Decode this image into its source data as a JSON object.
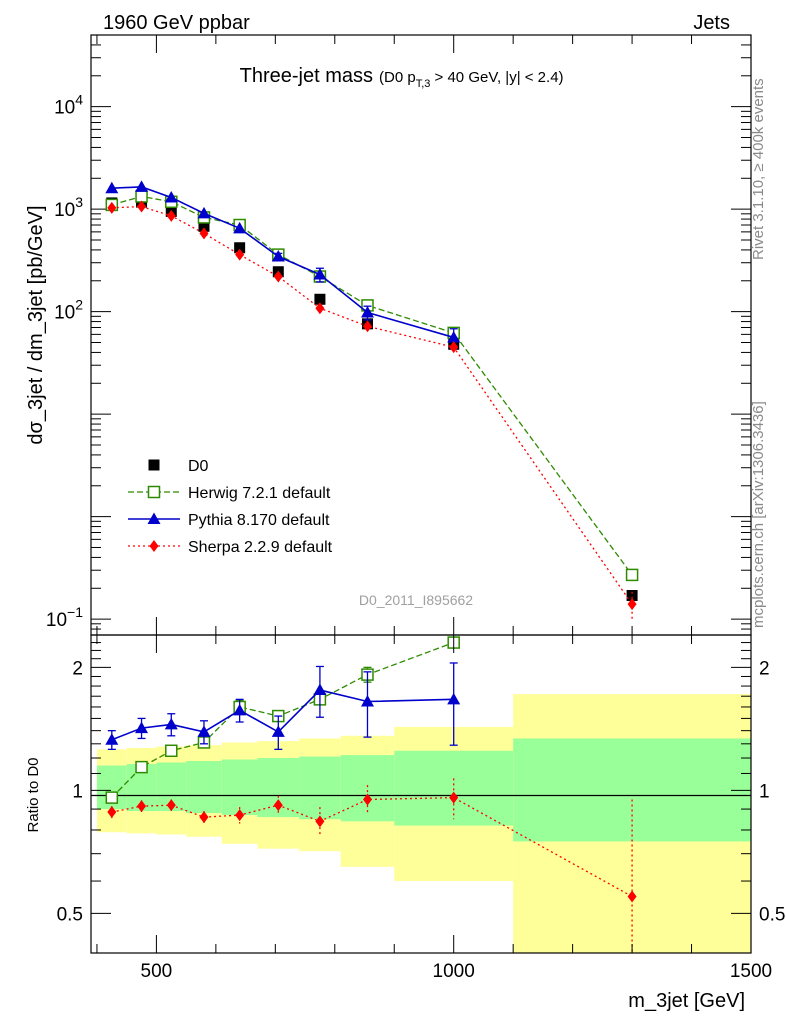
{
  "header": {
    "left": "1960 GeV ppbar",
    "right": "Jets"
  },
  "side_labels": {
    "rivet": "Rivet 3.1.10, ≥ 400k events",
    "mcplots": "mcplots.cern.ch [arXiv:1306.3436]"
  },
  "chart_data": [
    {
      "type": "scatter",
      "panel": "main",
      "title_main": "Three-jet mass",
      "title_sub": "(D0 p",
      "title_sub_index": "T,3",
      "title_sub_rest": " > 40 GeV, |y| < 2.4)",
      "ylabel": "dσ_3jet / dm_3jet [pb/GeV]",
      "watermark": "D0_2011_I895662",
      "yscale": "log",
      "xlim": [
        390,
        1500
      ],
      "ylim": [
        0.07,
        50000
      ],
      "x": [
        425,
        475,
        525,
        580,
        640,
        705,
        775,
        855,
        1000,
        1300
      ],
      "series": [
        {
          "name": "D0",
          "style": "data",
          "color": "#000000",
          "values": [
            1150,
            1170,
            950,
            680,
            420,
            245,
            132,
            76,
            48,
            0.17
          ],
          "errors": [
            0,
            0,
            0,
            0,
            0,
            0,
            0,
            0,
            0,
            0
          ]
        },
        {
          "name": "Herwig 7.2.1 default",
          "style": "open-square-dashed",
          "color": "#2e8b00",
          "values": [
            1100,
            1330,
            1180,
            830,
            700,
            360,
            220,
            115,
            62,
            0.27
          ],
          "errors": [
            0,
            0,
            0,
            0,
            0,
            0,
            0,
            0,
            0,
            0.03
          ]
        },
        {
          "name": "Pythia 8.170 default",
          "style": "triangle-solid",
          "color": "#0000cc",
          "values": [
            1600,
            1650,
            1300,
            910,
            650,
            345,
            230,
            98,
            56,
            null
          ],
          "errors": [
            0,
            0,
            0,
            0,
            0,
            25,
            35,
            15,
            12,
            0
          ]
        },
        {
          "name": "Sherpa 2.2.9 default",
          "style": "diamond-dotted",
          "color": "#ff0000",
          "values": [
            1030,
            1060,
            860,
            580,
            360,
            220,
            108,
            72,
            45,
            0.14
          ],
          "errors": [
            0,
            0,
            0,
            0,
            0,
            0,
            0,
            0,
            0,
            0.045
          ]
        }
      ],
      "legend": {
        "placement": "lower-left"
      },
      "ytick_labels": [
        {
          "v": 10000,
          "base": "10",
          "exp": "4"
        },
        {
          "v": 1000,
          "base": "10",
          "exp": "3"
        },
        {
          "v": 100,
          "base": "10",
          "exp": "2"
        },
        {
          "v": 0.1,
          "base": "10",
          "exp": "−1"
        }
      ]
    },
    {
      "type": "scatter",
      "panel": "ratio",
      "ylabel": "Ratio to D0",
      "xlabel": "m_3jet [GeV]",
      "yscale": "log",
      "xlim": [
        390,
        1500
      ],
      "ylim": [
        0.4,
        2.4
      ],
      "reference_line": 1,
      "xticks": [
        500,
        1000,
        1500
      ],
      "yticks": [
        0.5,
        1,
        2
      ],
      "bins": [
        [
          400,
          450
        ],
        [
          450,
          500
        ],
        [
          500,
          550
        ],
        [
          550,
          610
        ],
        [
          610,
          670
        ],
        [
          670,
          740
        ],
        [
          740,
          810
        ],
        [
          810,
          900
        ],
        [
          900,
          1100
        ],
        [
          1100,
          1500
        ]
      ],
      "band_stat_lo": [
        0.9,
        0.89,
        0.89,
        0.88,
        0.87,
        0.86,
        0.85,
        0.84,
        0.82,
        0.75
      ],
      "band_stat_hi": [
        1.15,
        1.16,
        1.17,
        1.18,
        1.19,
        1.2,
        1.21,
        1.22,
        1.25,
        1.34
      ],
      "band_tot_lo": [
        0.79,
        0.785,
        0.78,
        0.77,
        0.74,
        0.72,
        0.71,
        0.65,
        0.6,
        0.37
      ],
      "band_tot_hi": [
        1.26,
        1.27,
        1.28,
        1.29,
        1.31,
        1.32,
        1.34,
        1.36,
        1.43,
        1.72
      ],
      "x": [
        425,
        475,
        525,
        580,
        640,
        705,
        775,
        855,
        1000,
        1300
      ],
      "series": [
        {
          "name": "Herwig 7.2.1 default",
          "color": "#2e8b00",
          "values": [
            0.96,
            1.14,
            1.25,
            1.31,
            1.6,
            1.52,
            1.67,
            1.92,
            2.3,
            null
          ],
          "errors": [
            0,
            0,
            0,
            0,
            0.06,
            0,
            0,
            0.08,
            0,
            0
          ]
        },
        {
          "name": "Pythia 8.170 default",
          "color": "#0000cc",
          "values": [
            1.33,
            1.42,
            1.45,
            1.39,
            1.57,
            1.39,
            1.76,
            1.65,
            1.67,
            null
          ],
          "errors": [
            0.07,
            0.08,
            0.09,
            0.09,
            0.1,
            0.13,
            0.25,
            0.3,
            0.38,
            0
          ]
        },
        {
          "name": "Sherpa 2.2.9 default",
          "color": "#ff0000",
          "values": [
            0.885,
            0.915,
            0.92,
            0.86,
            0.87,
            0.92,
            0.84,
            0.95,
            0.96,
            0.55
          ],
          "errors": [
            0.03,
            0.03,
            0.03,
            0.03,
            0.04,
            0.05,
            0.07,
            0.08,
            0.11,
            0.4
          ]
        }
      ]
    }
  ]
}
